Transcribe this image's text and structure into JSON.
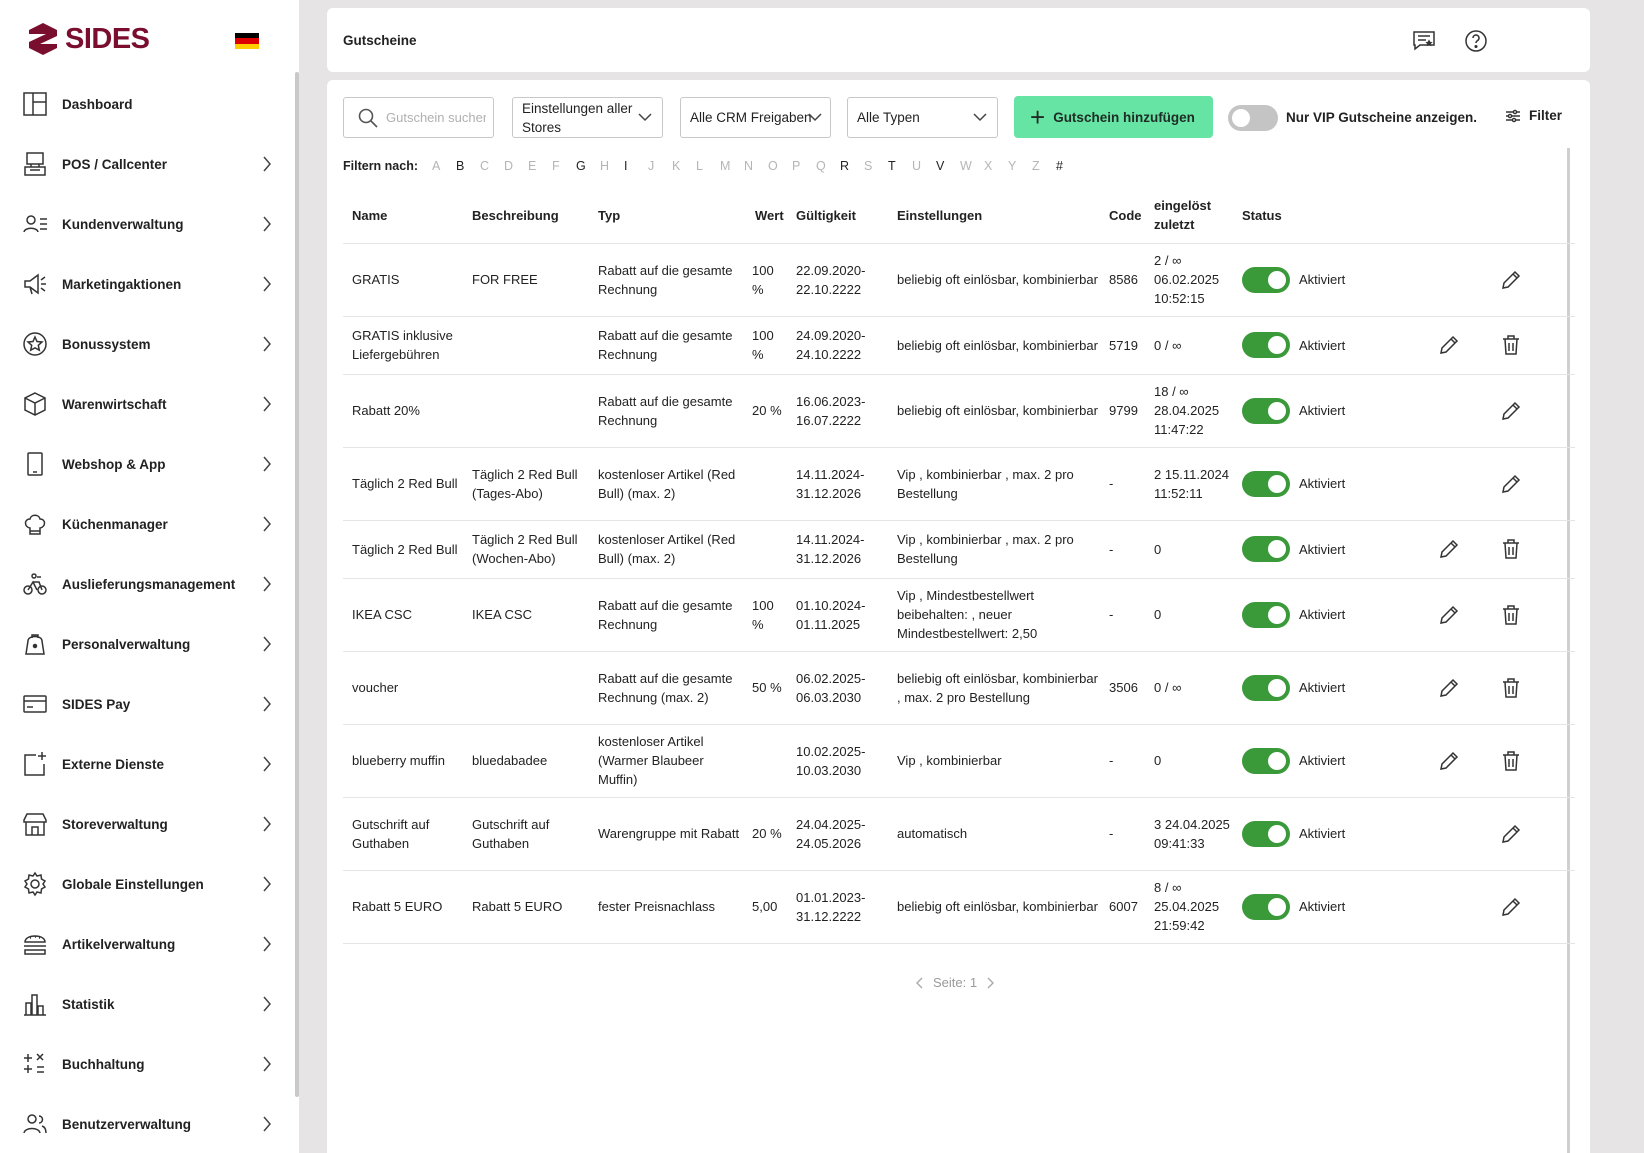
{
  "brand": {
    "name": "SIDES",
    "color": "#7a0e2e"
  },
  "sidebar": {
    "items": [
      {
        "label": "Dashboard",
        "icon": "dashboard-icon",
        "chevron": false
      },
      {
        "label": "POS / Callcenter",
        "icon": "pos-terminal-icon",
        "chevron": true
      },
      {
        "label": "Kundenverwaltung",
        "icon": "customers-icon",
        "chevron": true
      },
      {
        "label": "Marketingaktionen",
        "icon": "megaphone-icon",
        "chevron": true
      },
      {
        "label": "Bonussystem",
        "icon": "star-badge-icon",
        "chevron": true
      },
      {
        "label": "Warenwirtschaft",
        "icon": "box-icon",
        "chevron": true
      },
      {
        "label": "Webshop & App",
        "icon": "smartphone-icon",
        "chevron": true
      },
      {
        "label": "Küchenmanager",
        "icon": "chef-hat-icon",
        "chevron": true
      },
      {
        "label": "Auslieferungsmanagement",
        "icon": "delivery-bike-icon",
        "chevron": true
      },
      {
        "label": "Personalverwaltung",
        "icon": "staff-bag-icon",
        "chevron": true
      },
      {
        "label": "SIDES Pay",
        "icon": "credit-card-icon",
        "chevron": true
      },
      {
        "label": "Externe Dienste",
        "icon": "add-service-icon",
        "chevron": true
      },
      {
        "label": "Storeverwaltung",
        "icon": "store-icon",
        "chevron": true
      },
      {
        "label": "Globale Einstellungen",
        "icon": "gear-icon",
        "chevron": true
      },
      {
        "label": "Artikelverwaltung",
        "icon": "burger-icon",
        "chevron": true
      },
      {
        "label": "Statistik",
        "icon": "bar-chart-icon",
        "chevron": true
      },
      {
        "label": "Buchhaltung",
        "icon": "calculator-icon",
        "chevron": true
      },
      {
        "label": "Benutzerverwaltung",
        "icon": "users-icon",
        "chevron": true
      }
    ]
  },
  "header": {
    "title": "Gutscheine"
  },
  "toolbar": {
    "search_placeholder": "Gutschein suchen",
    "stores_select": "Einstellungen aller Stores",
    "crm_select": "Alle CRM Freigaben",
    "types_select": "Alle Typen",
    "add_button": "Gutschein hinzufügen",
    "add_button_color": "#65e4a3",
    "vip_toggle_label": "Nur VIP Gutscheine anzeigen.",
    "vip_toggle_on": false,
    "filter_label": "Filter"
  },
  "alpha_filter": {
    "label": "Filtern nach:",
    "letters": [
      {
        "l": "A",
        "on": false
      },
      {
        "l": "B",
        "on": true
      },
      {
        "l": "C",
        "on": false
      },
      {
        "l": "D",
        "on": false
      },
      {
        "l": "E",
        "on": false
      },
      {
        "l": "F",
        "on": false
      },
      {
        "l": "G",
        "on": true
      },
      {
        "l": "H",
        "on": false
      },
      {
        "l": "I",
        "on": true
      },
      {
        "l": "J",
        "on": false
      },
      {
        "l": "K",
        "on": false
      },
      {
        "l": "L",
        "on": false
      },
      {
        "l": "M",
        "on": false
      },
      {
        "l": "N",
        "on": false
      },
      {
        "l": "O",
        "on": false
      },
      {
        "l": "P",
        "on": false
      },
      {
        "l": "Q",
        "on": false
      },
      {
        "l": "R",
        "on": true
      },
      {
        "l": "S",
        "on": false
      },
      {
        "l": "T",
        "on": true
      },
      {
        "l": "U",
        "on": false
      },
      {
        "l": "V",
        "on": true
      },
      {
        "l": "W",
        "on": false
      },
      {
        "l": "X",
        "on": false
      },
      {
        "l": "Y",
        "on": false
      },
      {
        "l": "Z",
        "on": false
      },
      {
        "l": "#",
        "on": true
      }
    ]
  },
  "table": {
    "columns": [
      "Name",
      "Beschreibung",
      "Typ",
      "Wert",
      "Gültigkeit",
      "Einstellungen",
      "Code",
      "eingelöst zuletzt",
      "Status"
    ],
    "status_color": "#3a9a3a",
    "rows": [
      {
        "name": "GRATIS",
        "desc": "FOR FREE",
        "typ": "Rabatt auf die gesamte Rechnung",
        "wert": "100 %",
        "valid": "22.09.2020-22.10.2222",
        "settings": "beliebig oft einlösbar, kombinierbar",
        "code": "8586",
        "redeemed": "2 / ∞ 06.02.2025 10:52:15",
        "status": "Aktiviert",
        "deletable": false
      },
      {
        "name": "GRATIS inklusive Liefergebühren",
        "desc": "",
        "typ": "Rabatt auf die gesamte Rechnung",
        "wert": "100 %",
        "valid": "24.09.2020-24.10.2222",
        "settings": "beliebig oft einlösbar, kombinierbar",
        "code": "5719",
        "redeemed": "0 / ∞",
        "status": "Aktiviert",
        "deletable": true
      },
      {
        "name": "Rabatt 20%",
        "desc": "",
        "typ": "Rabatt auf die gesamte Rechnung",
        "wert": "20 %",
        "valid": "16.06.2023-16.07.2222",
        "settings": "beliebig oft einlösbar, kombinierbar",
        "code": "9799",
        "redeemed": "18 / ∞ 28.04.2025 11:47:22",
        "status": "Aktiviert",
        "deletable": false
      },
      {
        "name": "Täglich 2 Red Bull",
        "desc": "Täglich 2 Red Bull (Tages-Abo)",
        "typ": "kostenloser Artikel (Red Bull) (max. 2)",
        "wert": "",
        "valid": "14.11.2024-31.12.2026",
        "settings": "Vip , kombinierbar , max. 2 pro Bestellung",
        "code": "-",
        "redeemed": "2 15.11.2024 11:52:11",
        "status": "Aktiviert",
        "deletable": false
      },
      {
        "name": "Täglich 2 Red Bull",
        "desc": "Täglich 2 Red Bull (Wochen-Abo)",
        "typ": "kostenloser Artikel (Red Bull) (max. 2)",
        "wert": "",
        "valid": "14.11.2024-31.12.2026",
        "settings": "Vip , kombinierbar , max. 2 pro Bestellung",
        "code": "-",
        "redeemed": "0",
        "status": "Aktiviert",
        "deletable": true
      },
      {
        "name": "IKEA CSC",
        "desc": "IKEA CSC",
        "typ": "Rabatt auf die gesamte Rechnung",
        "wert": "100 %",
        "valid": "01.10.2024-01.11.2025",
        "settings": "Vip , Mindestbestellwert beibehalten: , neuer Mindestbestellwert: 2,50",
        "code": "-",
        "redeemed": "0",
        "status": "Aktiviert",
        "deletable": true
      },
      {
        "name": "voucher",
        "desc": "",
        "typ": "Rabatt auf die gesamte Rechnung (max. 2)",
        "wert": "50 %",
        "valid": "06.02.2025-06.03.2030",
        "settings": "beliebig oft einlösbar, kombinierbar , max. 2 pro Bestellung",
        "code": "3506",
        "redeemed": "0 / ∞",
        "status": "Aktiviert",
        "deletable": true
      },
      {
        "name": "blueberry muffin",
        "desc": "bluedabadee",
        "typ": "kostenloser Artikel (Warmer Blaubeer Muffin)",
        "wert": "",
        "valid": "10.02.2025-10.03.2030",
        "settings": "Vip , kombinierbar",
        "code": "-",
        "redeemed": "0",
        "status": "Aktiviert",
        "deletable": true
      },
      {
        "name": "Gutschrift auf Guthaben",
        "desc": "Gutschrift auf Guthaben",
        "typ": "Warengruppe mit Rabatt",
        "wert": "20 %",
        "valid": "24.04.2025-24.05.2026",
        "settings": "automatisch",
        "code": "-",
        "redeemed": "3 24.04.2025 09:41:33",
        "status": "Aktiviert",
        "deletable": false
      },
      {
        "name": "Rabatt 5 EURO",
        "desc": "Rabatt 5 EURO",
        "typ": "fester Preisnachlass",
        "wert": "5,00",
        "valid": "01.01.2023-31.12.2222",
        "settings": "beliebig oft einlösbar, kombinierbar",
        "code": "6007",
        "redeemed": "8 / ∞ 25.04.2025 21:59:42",
        "status": "Aktiviert",
        "deletable": false
      }
    ]
  },
  "pagination": {
    "label": "Seite: 1"
  }
}
